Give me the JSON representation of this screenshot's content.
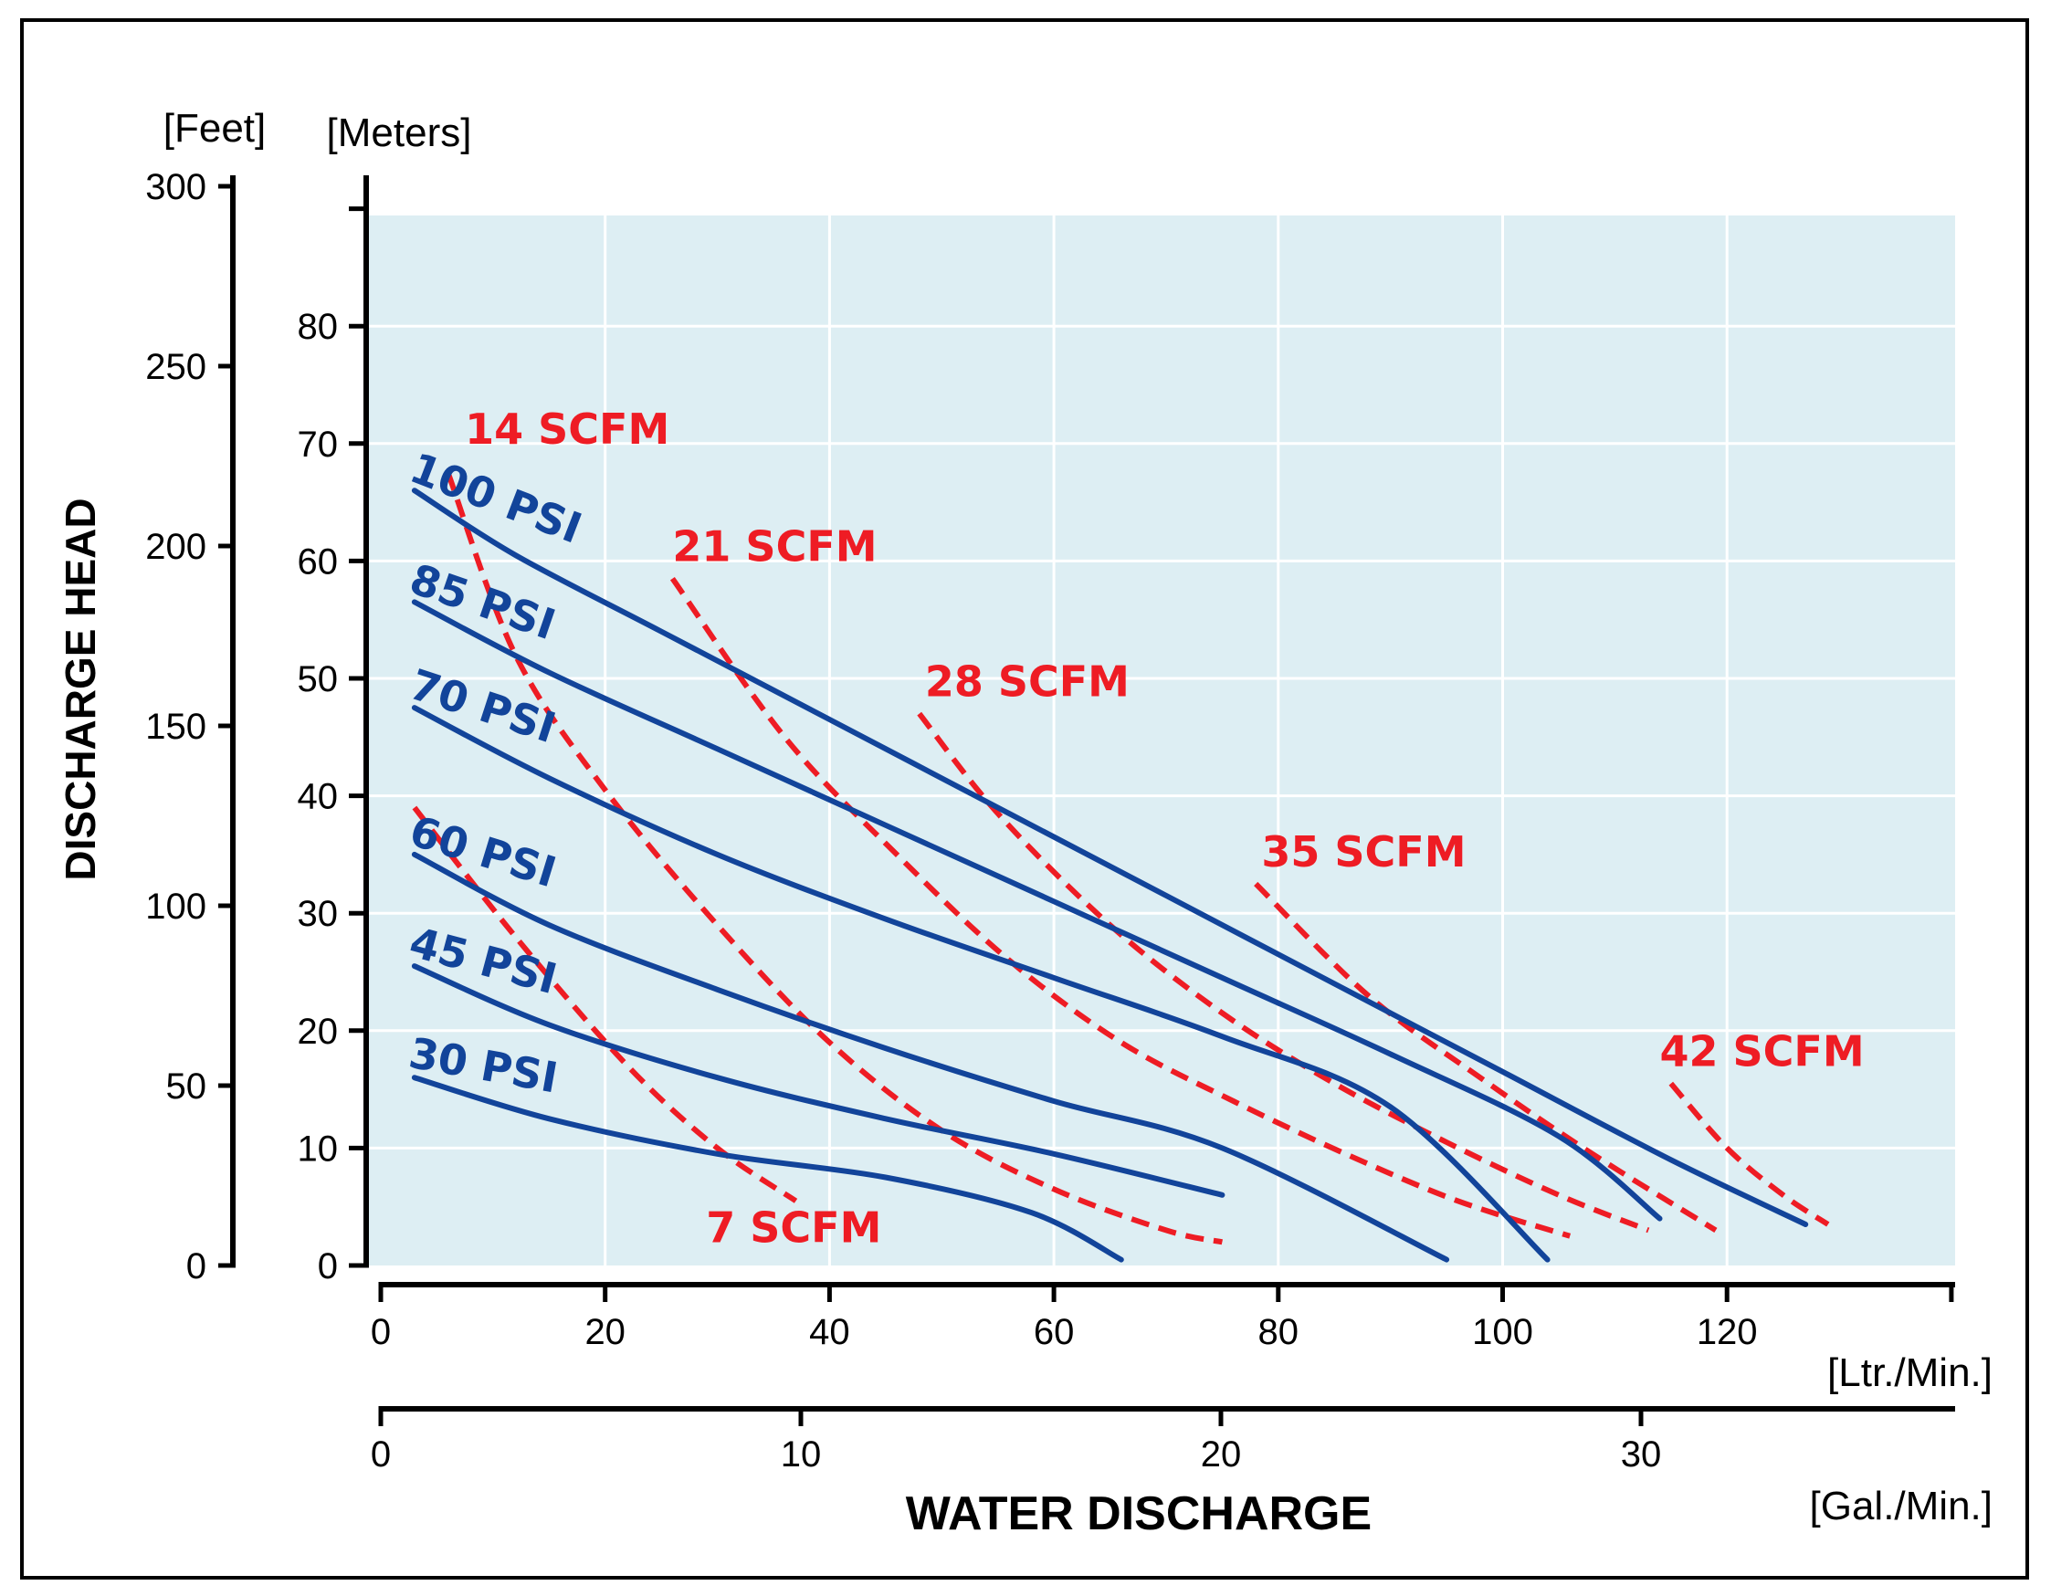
{
  "chart_data": {
    "type": "line",
    "title": "",
    "xlabel": "WATER DISCHARGE",
    "ylabel": "DISCHARGE HEAD",
    "x_unit_primary": "[Ltr./Min.]",
    "x_unit_secondary": "[Gal./Min.]",
    "y_unit_left": "[Feet]",
    "y_unit_right": "[Meters]",
    "xlim_lpm": [
      0,
      140
    ],
    "ylim_m": [
      0,
      90
    ],
    "xlim_gpm": [
      0,
      37
    ],
    "ylim_ft": [
      0,
      300
    ],
    "x_ticks_lpm": [
      "0",
      "20",
      "40",
      "60",
      "80",
      "100",
      "120"
    ],
    "x_ticks_gpm": [
      "0",
      "10",
      "20",
      "30"
    ],
    "y_ticks_m": [
      "0",
      "10",
      "20",
      "30",
      "40",
      "50",
      "60",
      "70",
      "80"
    ],
    "y_ticks_ft": [
      "0",
      "50",
      "100",
      "150",
      "200",
      "250",
      "300"
    ],
    "grid": true,
    "colors": {
      "plot_bg": "#ddeef3",
      "grid": "#ffffff",
      "pressure": "#12449a",
      "air": "#ee1c24",
      "axis": "#000000",
      "frame": "#000000"
    },
    "series": [
      {
        "name": "100 PSI",
        "kind": "pressure",
        "points": [
          [
            3,
            66
          ],
          [
            12,
            60.5
          ],
          [
            25,
            54
          ],
          [
            40,
            46.5
          ],
          [
            55,
            39
          ],
          [
            70,
            31.5
          ],
          [
            85,
            24
          ],
          [
            100,
            16.5
          ],
          [
            115,
            9
          ],
          [
            127,
            3.5
          ]
        ]
      },
      {
        "name": "85 PSI",
        "kind": "pressure",
        "points": [
          [
            3,
            56.5
          ],
          [
            15,
            50.5
          ],
          [
            30,
            44
          ],
          [
            45,
            37.5
          ],
          [
            60,
            31
          ],
          [
            75,
            24.5
          ],
          [
            90,
            18
          ],
          [
            105,
            11
          ],
          [
            114,
            4
          ]
        ]
      },
      {
        "name": "70 PSI",
        "kind": "pressure",
        "points": [
          [
            3,
            47.5
          ],
          [
            15,
            41.5
          ],
          [
            30,
            35
          ],
          [
            45,
            29.5
          ],
          [
            60,
            24.5
          ],
          [
            75,
            19.5
          ],
          [
            90,
            13.5
          ],
          [
            104,
            0.5
          ]
        ]
      },
      {
        "name": "60 PSI",
        "kind": "pressure",
        "points": [
          [
            3,
            35
          ],
          [
            15,
            29
          ],
          [
            30,
            23.5
          ],
          [
            45,
            18.5
          ],
          [
            60,
            14
          ],
          [
            75,
            10
          ],
          [
            95,
            0.5
          ]
        ]
      },
      {
        "name": "45 PSI",
        "kind": "pressure",
        "points": [
          [
            3,
            25.5
          ],
          [
            15,
            20.5
          ],
          [
            30,
            16
          ],
          [
            45,
            12.5
          ],
          [
            60,
            9.5
          ],
          [
            75,
            6
          ]
        ]
      },
      {
        "name": "30 PSI",
        "kind": "pressure",
        "points": [
          [
            3,
            16
          ],
          [
            15,
            12.5
          ],
          [
            30,
            9.5
          ],
          [
            45,
            7.5
          ],
          [
            58,
            4.5
          ],
          [
            66,
            0.5
          ]
        ]
      },
      {
        "name": "7 SCFM",
        "kind": "air",
        "points": [
          [
            3,
            39
          ],
          [
            12,
            28
          ],
          [
            22,
            17
          ],
          [
            30,
            10
          ],
          [
            37,
            5.5
          ]
        ]
      },
      {
        "name": "14 SCFM",
        "kind": "air",
        "points": [
          [
            6,
            67.5
          ],
          [
            12,
            52
          ],
          [
            20,
            40.5
          ],
          [
            30,
            29
          ],
          [
            40,
            19
          ],
          [
            50,
            11.5
          ],
          [
            60,
            6.5
          ],
          [
            70,
            3
          ],
          [
            75,
            2
          ]
        ]
      },
      {
        "name": "21 SCFM",
        "kind": "air",
        "points": [
          [
            26,
            58.5
          ],
          [
            36,
            45
          ],
          [
            46,
            35
          ],
          [
            56,
            26
          ],
          [
            66,
            19
          ],
          [
            76,
            14
          ],
          [
            86,
            9.5
          ],
          [
            96,
            5.5
          ],
          [
            106,
            2.5
          ]
        ]
      },
      {
        "name": "28 SCFM",
        "kind": "air",
        "points": [
          [
            48,
            47
          ],
          [
            55,
            38.5
          ],
          [
            65,
            29
          ],
          [
            75,
            21.5
          ],
          [
            85,
            15.5
          ],
          [
            95,
            10.5
          ],
          [
            105,
            6
          ],
          [
            113,
            3
          ]
        ]
      },
      {
        "name": "35 SCFM",
        "kind": "air",
        "points": [
          [
            78,
            32.5
          ],
          [
            88,
            23
          ],
          [
            98,
            16
          ],
          [
            108,
            9.5
          ],
          [
            119,
            3
          ]
        ]
      },
      {
        "name": "42 SCFM",
        "kind": "air",
        "points": [
          [
            115,
            15.5
          ],
          [
            120,
            10
          ],
          [
            125,
            6
          ],
          [
            129,
            3.5
          ]
        ]
      }
    ],
    "annotations": [
      {
        "text": "100 PSI",
        "series": "100 PSI",
        "anchor": [
          3,
          66
        ],
        "rotate_deg": 21
      },
      {
        "text": "85 PSI",
        "series": "85 PSI",
        "anchor": [
          3,
          56.5
        ],
        "rotate_deg": 19
      },
      {
        "text": "70 PSI",
        "series": "70 PSI",
        "anchor": [
          3,
          47.5
        ],
        "rotate_deg": 18
      },
      {
        "text": "60 PSI",
        "series": "60 PSI",
        "anchor": [
          3,
          35
        ],
        "rotate_deg": 17
      },
      {
        "text": "45 PSI",
        "series": "45 PSI",
        "anchor": [
          3,
          25.5
        ],
        "rotate_deg": 15
      },
      {
        "text": "30 PSI",
        "series": "30 PSI",
        "anchor": [
          3,
          16
        ],
        "rotate_deg": 10
      },
      {
        "text": "14 SCFM",
        "series": "14 SCFM",
        "anchor": [
          7.5,
          70
        ]
      },
      {
        "text": "21 SCFM",
        "series": "21 SCFM",
        "anchor": [
          26,
          60
        ]
      },
      {
        "text": "28 SCFM",
        "series": "28 SCFM",
        "anchor": [
          48.5,
          48.5
        ]
      },
      {
        "text": "35 SCFM",
        "series": "35 SCFM",
        "anchor": [
          78.5,
          34
        ]
      },
      {
        "text": "42 SCFM",
        "series": "42 SCFM",
        "anchor": [
          114,
          17
        ]
      },
      {
        "text": "7 SCFM",
        "series": "7 SCFM",
        "anchor": [
          29,
          2
        ]
      }
    ]
  }
}
